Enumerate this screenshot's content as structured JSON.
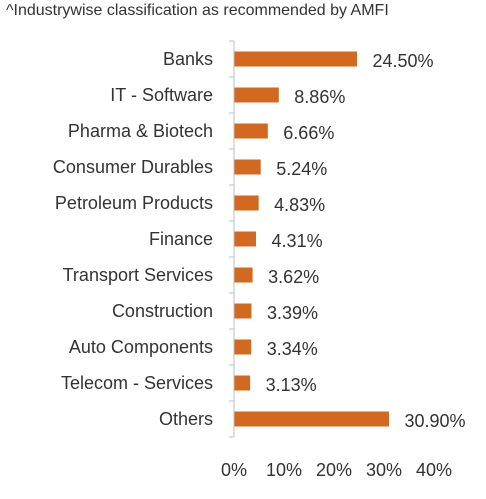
{
  "chart_data": {
    "type": "bar",
    "orientation": "horizontal",
    "title": "^Industrywise classification as recommended by AMFI",
    "categories": [
      "Banks",
      "IT - Software",
      "Pharma & Biotech",
      "Consumer Durables",
      "Petroleum Products",
      "Finance",
      "Transport Services",
      "Construction",
      "Auto Components",
      "Telecom - Services",
      "Others"
    ],
    "values": [
      24.5,
      8.86,
      6.66,
      5.24,
      4.83,
      4.31,
      3.62,
      3.39,
      3.34,
      3.13,
      30.9
    ],
    "value_labels": [
      "24.50%",
      "8.86%",
      "6.66%",
      "5.24%",
      "4.83%",
      "4.31%",
      "3.62%",
      "3.39%",
      "3.34%",
      "3.13%",
      "30.90%"
    ],
    "x_ticks": [
      0,
      10,
      20,
      30,
      40
    ],
    "x_tick_labels": [
      "0%",
      "10%",
      "20%",
      "30%",
      "40%"
    ],
    "xlim": [
      0,
      40
    ],
    "xlabel": "",
    "ylabel": "",
    "grid": false,
    "legend": "none",
    "bar_color": "#D2691E"
  }
}
